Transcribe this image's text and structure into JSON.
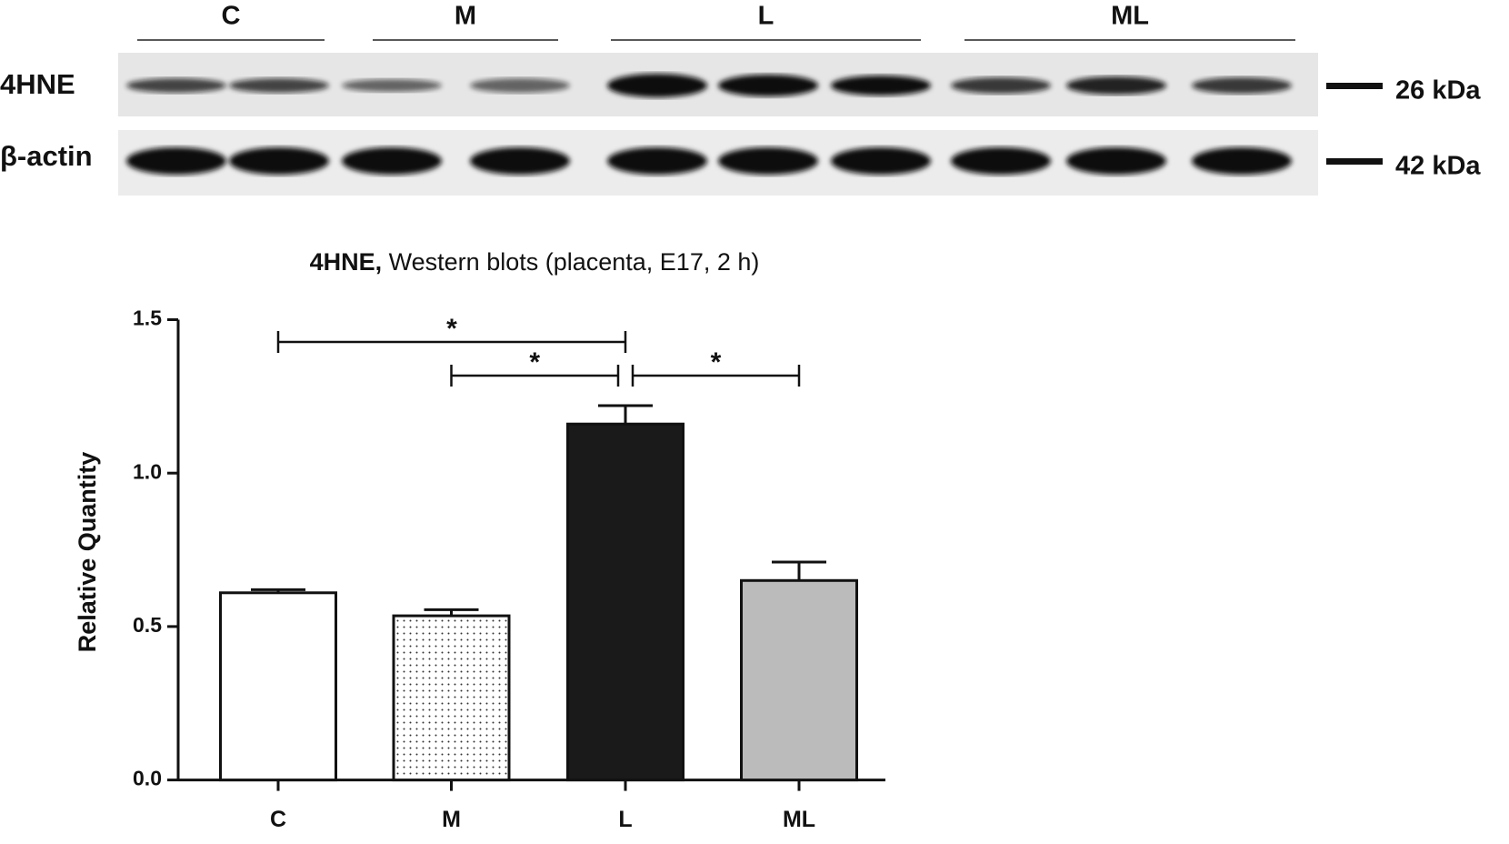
{
  "blot": {
    "groups": [
      "C",
      "M",
      "L",
      "ML"
    ],
    "rows": [
      {
        "label": "4HNE",
        "marker": "26 kDa"
      },
      {
        "label": "β-actin",
        "marker": "42 kDa"
      }
    ]
  },
  "chart_data": {
    "type": "bar",
    "title_bold": "4HNE,",
    "title": "Western blots (placenta, E17, 2 h)",
    "y_label": "Relative Quantity",
    "categories": [
      "C",
      "M",
      "L",
      "ML"
    ],
    "series": [
      {
        "values": [
          0.61,
          0.535,
          1.16,
          0.65
        ],
        "errors": [
          0.01,
          0.02,
          0.06,
          0.06
        ],
        "colors": [
          "#ffffff",
          "#ffffff",
          "#1a1a1a",
          "#bbbbbb"
        ]
      }
    ],
    "ylim": [
      0,
      1.5
    ],
    "yticks": [
      {
        "value": 0,
        "label": "0.0"
      },
      0.5,
      {
        "value": 1,
        "label": "1.0"
      },
      1.5
    ],
    "annotations": [
      {
        "text": "*",
        "from": "C",
        "to": "L"
      },
      {
        "text": "*",
        "from": "M",
        "to": "L"
      },
      {
        "text": "*",
        "from": "L",
        "to": "ML"
      }
    ]
  }
}
